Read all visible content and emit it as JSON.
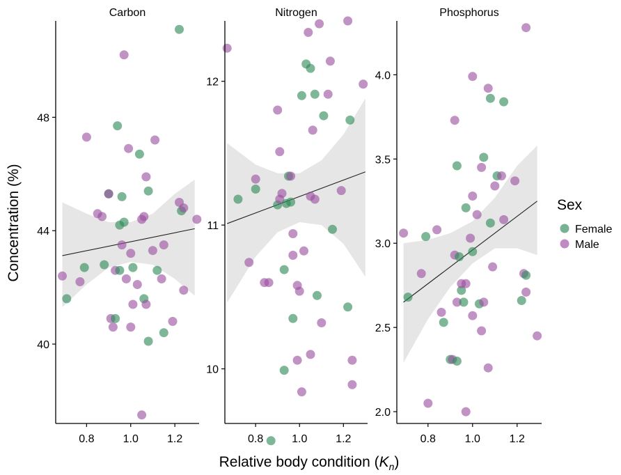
{
  "chart_data": {
    "type": "scatter",
    "xlabel": "Relative body condition (",
    "xlabel_symbol": "K",
    "xlabel_sub": "n",
    "xlabel_close": ")",
    "ylabel": "Concentration (%)",
    "legend": {
      "title": "Sex",
      "placement": "right",
      "entries": [
        {
          "name": "Female",
          "color": "#2e8b57"
        },
        {
          "name": "Male",
          "color": "#9b4f9f"
        }
      ]
    },
    "colors": {
      "Female": "#2e8b57",
      "Male": "#9b4f9f",
      "ci_band": "#e6e6e6",
      "fit_line": "#222222"
    },
    "panels": [
      {
        "title": "Carbon",
        "xlim": [
          0.66,
          1.31
        ],
        "ylim": [
          37.2,
          51.4
        ],
        "xticks": [
          0.8,
          1.0,
          1.2
        ],
        "yticks": [
          40,
          44,
          48
        ],
        "fit": {
          "x": [
            0.69,
            1.29
          ],
          "y": [
            43.12,
            44.07
          ]
        },
        "band": {
          "x": [
            0.69,
            0.8,
            0.9,
            1.0,
            1.1,
            1.2,
            1.29
          ],
          "lower": [
            41.3,
            42.1,
            42.7,
            42.9,
            42.8,
            42.3,
            41.7
          ],
          "upper": [
            45.0,
            44.6,
            44.3,
            44.3,
            44.6,
            45.3,
            45.8
          ]
        },
        "points": [
          {
            "x": 0.69,
            "y": 42.4,
            "sex": "Male"
          },
          {
            "x": 0.71,
            "y": 41.6,
            "sex": "Female"
          },
          {
            "x": 0.77,
            "y": 42.2,
            "sex": "Male"
          },
          {
            "x": 0.79,
            "y": 42.7,
            "sex": "Female"
          },
          {
            "x": 0.8,
            "y": 47.3,
            "sex": "Male"
          },
          {
            "x": 0.85,
            "y": 44.6,
            "sex": "Male"
          },
          {
            "x": 0.87,
            "y": 44.5,
            "sex": "Male"
          },
          {
            "x": 0.88,
            "y": 42.8,
            "sex": "Female"
          },
          {
            "x": 0.9,
            "y": 45.3,
            "sex": "Female"
          },
          {
            "x": 0.9,
            "y": 45.3,
            "sex": "Male"
          },
          {
            "x": 0.91,
            "y": 40.9,
            "sex": "Male"
          },
          {
            "x": 0.92,
            "y": 40.6,
            "sex": "Male"
          },
          {
            "x": 0.93,
            "y": 40.9,
            "sex": "Female"
          },
          {
            "x": 0.93,
            "y": 42.6,
            "sex": "Male"
          },
          {
            "x": 0.94,
            "y": 47.7,
            "sex": "Female"
          },
          {
            "x": 0.95,
            "y": 44.2,
            "sex": "Female"
          },
          {
            "x": 0.95,
            "y": 42.6,
            "sex": "Female"
          },
          {
            "x": 0.96,
            "y": 45.2,
            "sex": "Female"
          },
          {
            "x": 0.96,
            "y": 43.5,
            "sex": "Male"
          },
          {
            "x": 0.97,
            "y": 44.3,
            "sex": "Female"
          },
          {
            "x": 0.97,
            "y": 50.2,
            "sex": "Male"
          },
          {
            "x": 0.98,
            "y": 42.3,
            "sex": "Male"
          },
          {
            "x": 0.99,
            "y": 46.9,
            "sex": "Male"
          },
          {
            "x": 1.0,
            "y": 43.2,
            "sex": "Male"
          },
          {
            "x": 1.0,
            "y": 40.6,
            "sex": "Male"
          },
          {
            "x": 1.01,
            "y": 41.4,
            "sex": "Male"
          },
          {
            "x": 1.01,
            "y": 42.7,
            "sex": "Female"
          },
          {
            "x": 1.03,
            "y": 42.1,
            "sex": "Male"
          },
          {
            "x": 1.04,
            "y": 46.7,
            "sex": "Female"
          },
          {
            "x": 1.05,
            "y": 44.4,
            "sex": "Male"
          },
          {
            "x": 1.05,
            "y": 37.5,
            "sex": "Male"
          },
          {
            "x": 1.06,
            "y": 41.6,
            "sex": "Female"
          },
          {
            "x": 1.06,
            "y": 44.5,
            "sex": "Male"
          },
          {
            "x": 1.07,
            "y": 45.9,
            "sex": "Male"
          },
          {
            "x": 1.07,
            "y": 41.4,
            "sex": "Male"
          },
          {
            "x": 1.08,
            "y": 40.1,
            "sex": "Female"
          },
          {
            "x": 1.08,
            "y": 45.4,
            "sex": "Female"
          },
          {
            "x": 1.1,
            "y": 43.3,
            "sex": "Male"
          },
          {
            "x": 1.11,
            "y": 47.2,
            "sex": "Male"
          },
          {
            "x": 1.12,
            "y": 42.6,
            "sex": "Female"
          },
          {
            "x": 1.14,
            "y": 42.3,
            "sex": "Male"
          },
          {
            "x": 1.15,
            "y": 43.5,
            "sex": "Male"
          },
          {
            "x": 1.15,
            "y": 40.4,
            "sex": "Female"
          },
          {
            "x": 1.19,
            "y": 40.8,
            "sex": "Male"
          },
          {
            "x": 1.22,
            "y": 51.1,
            "sex": "Female"
          },
          {
            "x": 1.22,
            "y": 45.0,
            "sex": "Male"
          },
          {
            "x": 1.23,
            "y": 44.7,
            "sex": "Female"
          },
          {
            "x": 1.24,
            "y": 44.8,
            "sex": "Male"
          },
          {
            "x": 1.24,
            "y": 41.9,
            "sex": "Male"
          },
          {
            "x": 1.3,
            "y": 44.4,
            "sex": "Male"
          }
        ]
      },
      {
        "title": "Nitrogen",
        "xlim": [
          0.66,
          1.31
        ],
        "ylim": [
          9.62,
          12.42
        ],
        "xticks": [
          0.8,
          1.0,
          1.2
        ],
        "yticks": [
          10,
          11,
          12
        ],
        "fit": {
          "x": [
            0.67,
            1.3
          ],
          "y": [
            11.01,
            11.37
          ]
        },
        "band": {
          "x": [
            0.67,
            0.8,
            0.9,
            1.0,
            1.1,
            1.2,
            1.3
          ],
          "lower": [
            10.46,
            10.78,
            10.95,
            11.02,
            11.0,
            10.87,
            10.64
          ],
          "upper": [
            11.57,
            11.42,
            11.36,
            11.36,
            11.45,
            11.63,
            11.88
          ]
        },
        "points": [
          {
            "x": 0.67,
            "y": 12.23,
            "sex": "Male"
          },
          {
            "x": 0.72,
            "y": 11.18,
            "sex": "Female"
          },
          {
            "x": 0.77,
            "y": 10.74,
            "sex": "Male"
          },
          {
            "x": 0.8,
            "y": 11.25,
            "sex": "Female"
          },
          {
            "x": 0.8,
            "y": 11.32,
            "sex": "Male"
          },
          {
            "x": 0.84,
            "y": 10.6,
            "sex": "Male"
          },
          {
            "x": 0.86,
            "y": 10.6,
            "sex": "Male"
          },
          {
            "x": 0.87,
            "y": 9.5,
            "sex": "Female"
          },
          {
            "x": 0.9,
            "y": 11.8,
            "sex": "Male"
          },
          {
            "x": 0.91,
            "y": 11.51,
            "sex": "Male"
          },
          {
            "x": 0.9,
            "y": 11.14,
            "sex": "Female"
          },
          {
            "x": 0.91,
            "y": 11.18,
            "sex": "Male"
          },
          {
            "x": 0.92,
            "y": 11.22,
            "sex": "Male"
          },
          {
            "x": 0.93,
            "y": 10.69,
            "sex": "Female"
          },
          {
            "x": 0.93,
            "y": 9.99,
            "sex": "Female"
          },
          {
            "x": 0.94,
            "y": 11.15,
            "sex": "Female"
          },
          {
            "x": 0.95,
            "y": 11.34,
            "sex": "Female"
          },
          {
            "x": 0.96,
            "y": 11.34,
            "sex": "Male"
          },
          {
            "x": 0.96,
            "y": 11.16,
            "sex": "Female"
          },
          {
            "x": 0.97,
            "y": 10.35,
            "sex": "Female"
          },
          {
            "x": 0.97,
            "y": 10.79,
            "sex": "Male"
          },
          {
            "x": 0.97,
            "y": 10.94,
            "sex": "Male"
          },
          {
            "x": 0.99,
            "y": 10.58,
            "sex": "Male"
          },
          {
            "x": 1.0,
            "y": 10.54,
            "sex": "Male"
          },
          {
            "x": 0.99,
            "y": 10.06,
            "sex": "Male"
          },
          {
            "x": 1.01,
            "y": 9.84,
            "sex": "Male"
          },
          {
            "x": 1.01,
            "y": 11.9,
            "sex": "Female"
          },
          {
            "x": 1.02,
            "y": 10.82,
            "sex": "Male"
          },
          {
            "x": 1.03,
            "y": 12.12,
            "sex": "Female"
          },
          {
            "x": 1.04,
            "y": 12.34,
            "sex": "Male"
          },
          {
            "x": 1.05,
            "y": 12.09,
            "sex": "Female"
          },
          {
            "x": 1.05,
            "y": 11.2,
            "sex": "Male"
          },
          {
            "x": 1.05,
            "y": 10.1,
            "sex": "Male"
          },
          {
            "x": 1.06,
            "y": 11.66,
            "sex": "Male"
          },
          {
            "x": 1.07,
            "y": 11.91,
            "sex": "Female"
          },
          {
            "x": 1.07,
            "y": 11.18,
            "sex": "Male"
          },
          {
            "x": 1.08,
            "y": 10.51,
            "sex": "Female"
          },
          {
            "x": 1.09,
            "y": 12.4,
            "sex": "Male"
          },
          {
            "x": 1.1,
            "y": 10.32,
            "sex": "Male"
          },
          {
            "x": 1.11,
            "y": 11.76,
            "sex": "Female"
          },
          {
            "x": 1.13,
            "y": 11.91,
            "sex": "Male"
          },
          {
            "x": 1.14,
            "y": 12.14,
            "sex": "Male"
          },
          {
            "x": 1.15,
            "y": 10.97,
            "sex": "Female"
          },
          {
            "x": 1.19,
            "y": 11.24,
            "sex": "Male"
          },
          {
            "x": 1.22,
            "y": 12.42,
            "sex": "Male"
          },
          {
            "x": 1.22,
            "y": 10.43,
            "sex": "Female"
          },
          {
            "x": 1.23,
            "y": 11.73,
            "sex": "Female"
          },
          {
            "x": 1.24,
            "y": 10.06,
            "sex": "Male"
          },
          {
            "x": 1.24,
            "y": 9.89,
            "sex": "Male"
          },
          {
            "x": 1.29,
            "y": 11.98,
            "sex": "Male"
          }
        ]
      },
      {
        "title": "Phosphorus",
        "xlim": [
          0.66,
          1.31
        ],
        "ylim": [
          1.93,
          4.32
        ],
        "xticks": [
          0.8,
          1.0,
          1.2
        ],
        "yticks": [
          2.0,
          2.5,
          3.0,
          3.5,
          4.0
        ],
        "fit": {
          "x": [
            0.69,
            1.29
          ],
          "y": [
            2.65,
            3.25
          ]
        },
        "band": {
          "x": [
            0.69,
            0.8,
            0.9,
            1.0,
            1.1,
            1.2,
            1.29
          ],
          "lower": [
            2.29,
            2.55,
            2.74,
            2.88,
            2.97,
            2.97,
            2.93
          ],
          "upper": [
            3.0,
            3.02,
            3.06,
            3.13,
            3.27,
            3.46,
            3.58
          ]
        },
        "points": [
          {
            "x": 0.69,
            "y": 3.06,
            "sex": "Male"
          },
          {
            "x": 0.71,
            "y": 2.68,
            "sex": "Female"
          },
          {
            "x": 0.77,
            "y": 2.82,
            "sex": "Male"
          },
          {
            "x": 0.79,
            "y": 3.04,
            "sex": "Female"
          },
          {
            "x": 0.8,
            "y": 2.05,
            "sex": "Male"
          },
          {
            "x": 0.84,
            "y": 3.08,
            "sex": "Male"
          },
          {
            "x": 0.86,
            "y": 2.59,
            "sex": "Male"
          },
          {
            "x": 0.87,
            "y": 2.53,
            "sex": "Female"
          },
          {
            "x": 0.9,
            "y": 2.31,
            "sex": "Female"
          },
          {
            "x": 0.91,
            "y": 2.31,
            "sex": "Male"
          },
          {
            "x": 0.92,
            "y": 3.73,
            "sex": "Male"
          },
          {
            "x": 0.92,
            "y": 2.93,
            "sex": "Male"
          },
          {
            "x": 0.93,
            "y": 3.46,
            "sex": "Female"
          },
          {
            "x": 0.93,
            "y": 2.65,
            "sex": "Male"
          },
          {
            "x": 0.93,
            "y": 2.3,
            "sex": "Female"
          },
          {
            "x": 0.94,
            "y": 2.92,
            "sex": "Female"
          },
          {
            "x": 0.95,
            "y": 2.72,
            "sex": "Female"
          },
          {
            "x": 0.95,
            "y": 2.76,
            "sex": "Male"
          },
          {
            "x": 0.96,
            "y": 2.65,
            "sex": "Female"
          },
          {
            "x": 0.97,
            "y": 3.21,
            "sex": "Female"
          },
          {
            "x": 0.97,
            "y": 2.76,
            "sex": "Male"
          },
          {
            "x": 0.97,
            "y": 2.0,
            "sex": "Male"
          },
          {
            "x": 0.99,
            "y": 3.03,
            "sex": "Male"
          },
          {
            "x": 1.0,
            "y": 2.57,
            "sex": "Male"
          },
          {
            "x": 1.0,
            "y": 3.28,
            "sex": "Male"
          },
          {
            "x": 1.0,
            "y": 2.95,
            "sex": "Female"
          },
          {
            "x": 1.0,
            "y": 3.99,
            "sex": "Male"
          },
          {
            "x": 1.02,
            "y": 3.17,
            "sex": "Male"
          },
          {
            "x": 1.03,
            "y": 2.64,
            "sex": "Female"
          },
          {
            "x": 1.04,
            "y": 3.45,
            "sex": "Male"
          },
          {
            "x": 1.04,
            "y": 2.48,
            "sex": "Male"
          },
          {
            "x": 1.05,
            "y": 3.51,
            "sex": "Female"
          },
          {
            "x": 1.05,
            "y": 2.65,
            "sex": "Male"
          },
          {
            "x": 1.07,
            "y": 3.92,
            "sex": "Male"
          },
          {
            "x": 1.07,
            "y": 2.26,
            "sex": "Male"
          },
          {
            "x": 1.08,
            "y": 3.86,
            "sex": "Female"
          },
          {
            "x": 1.08,
            "y": 3.12,
            "sex": "Female"
          },
          {
            "x": 1.09,
            "y": 2.86,
            "sex": "Male"
          },
          {
            "x": 1.1,
            "y": 3.34,
            "sex": "Male"
          },
          {
            "x": 1.11,
            "y": 3.4,
            "sex": "Female"
          },
          {
            "x": 1.13,
            "y": 3.4,
            "sex": "Male"
          },
          {
            "x": 1.14,
            "y": 3.84,
            "sex": "Female"
          },
          {
            "x": 1.14,
            "y": 3.14,
            "sex": "Male"
          },
          {
            "x": 1.19,
            "y": 3.37,
            "sex": "Male"
          },
          {
            "x": 1.22,
            "y": 2.66,
            "sex": "Female"
          },
          {
            "x": 1.23,
            "y": 2.82,
            "sex": "Male"
          },
          {
            "x": 1.24,
            "y": 2.81,
            "sex": "Female"
          },
          {
            "x": 1.24,
            "y": 4.28,
            "sex": "Male"
          },
          {
            "x": 1.24,
            "y": 2.71,
            "sex": "Male"
          },
          {
            "x": 1.29,
            "y": 2.45,
            "sex": "Male"
          }
        ]
      }
    ]
  }
}
